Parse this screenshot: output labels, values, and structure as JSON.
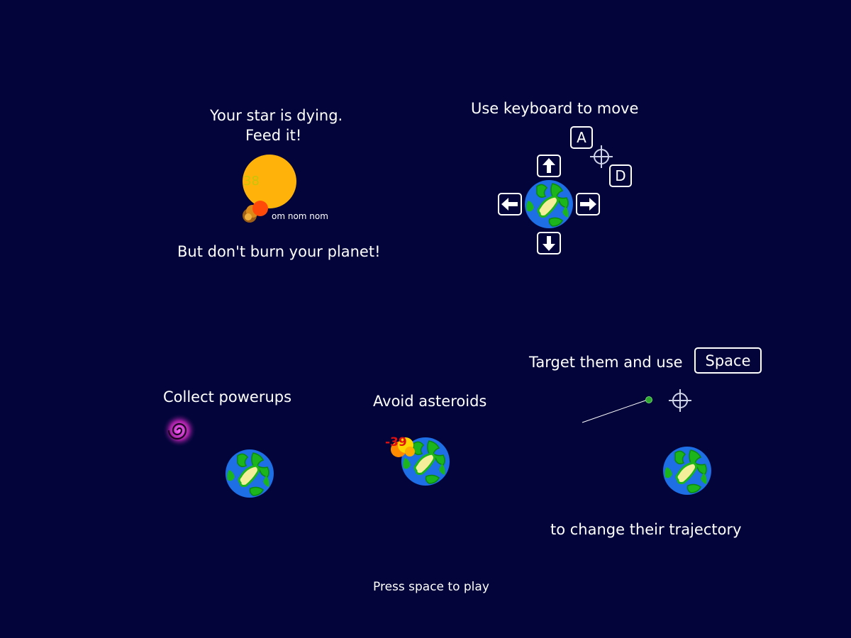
{
  "star_section": {
    "line1": "Your star is dying.",
    "line2": "Feed it!",
    "star_value": "38",
    "eat_text": "om nom nom",
    "warning": "But don't burn your planet!"
  },
  "controls_section": {
    "title": "Use keyboard to move",
    "key_a": "A",
    "key_d": "D",
    "arrow_up": "arrow-up-icon",
    "arrow_down": "arrow-down-icon",
    "arrow_left": "arrow-left-icon",
    "arrow_right": "arrow-right-icon"
  },
  "powerups_section": {
    "title": "Collect powerups"
  },
  "asteroids_section": {
    "title": "Avoid asteroids",
    "damage": "-39"
  },
  "target_section": {
    "prefix": "Target them and use",
    "key_space": "Space",
    "suffix": "to change their trajectory"
  },
  "footer": {
    "prompt": "Press space to play"
  },
  "colors": {
    "background": "#02043a",
    "star": "#ffb30a",
    "ocean": "#1e6fe6",
    "land": "#1db51d",
    "powerup": "#a01ea0"
  }
}
